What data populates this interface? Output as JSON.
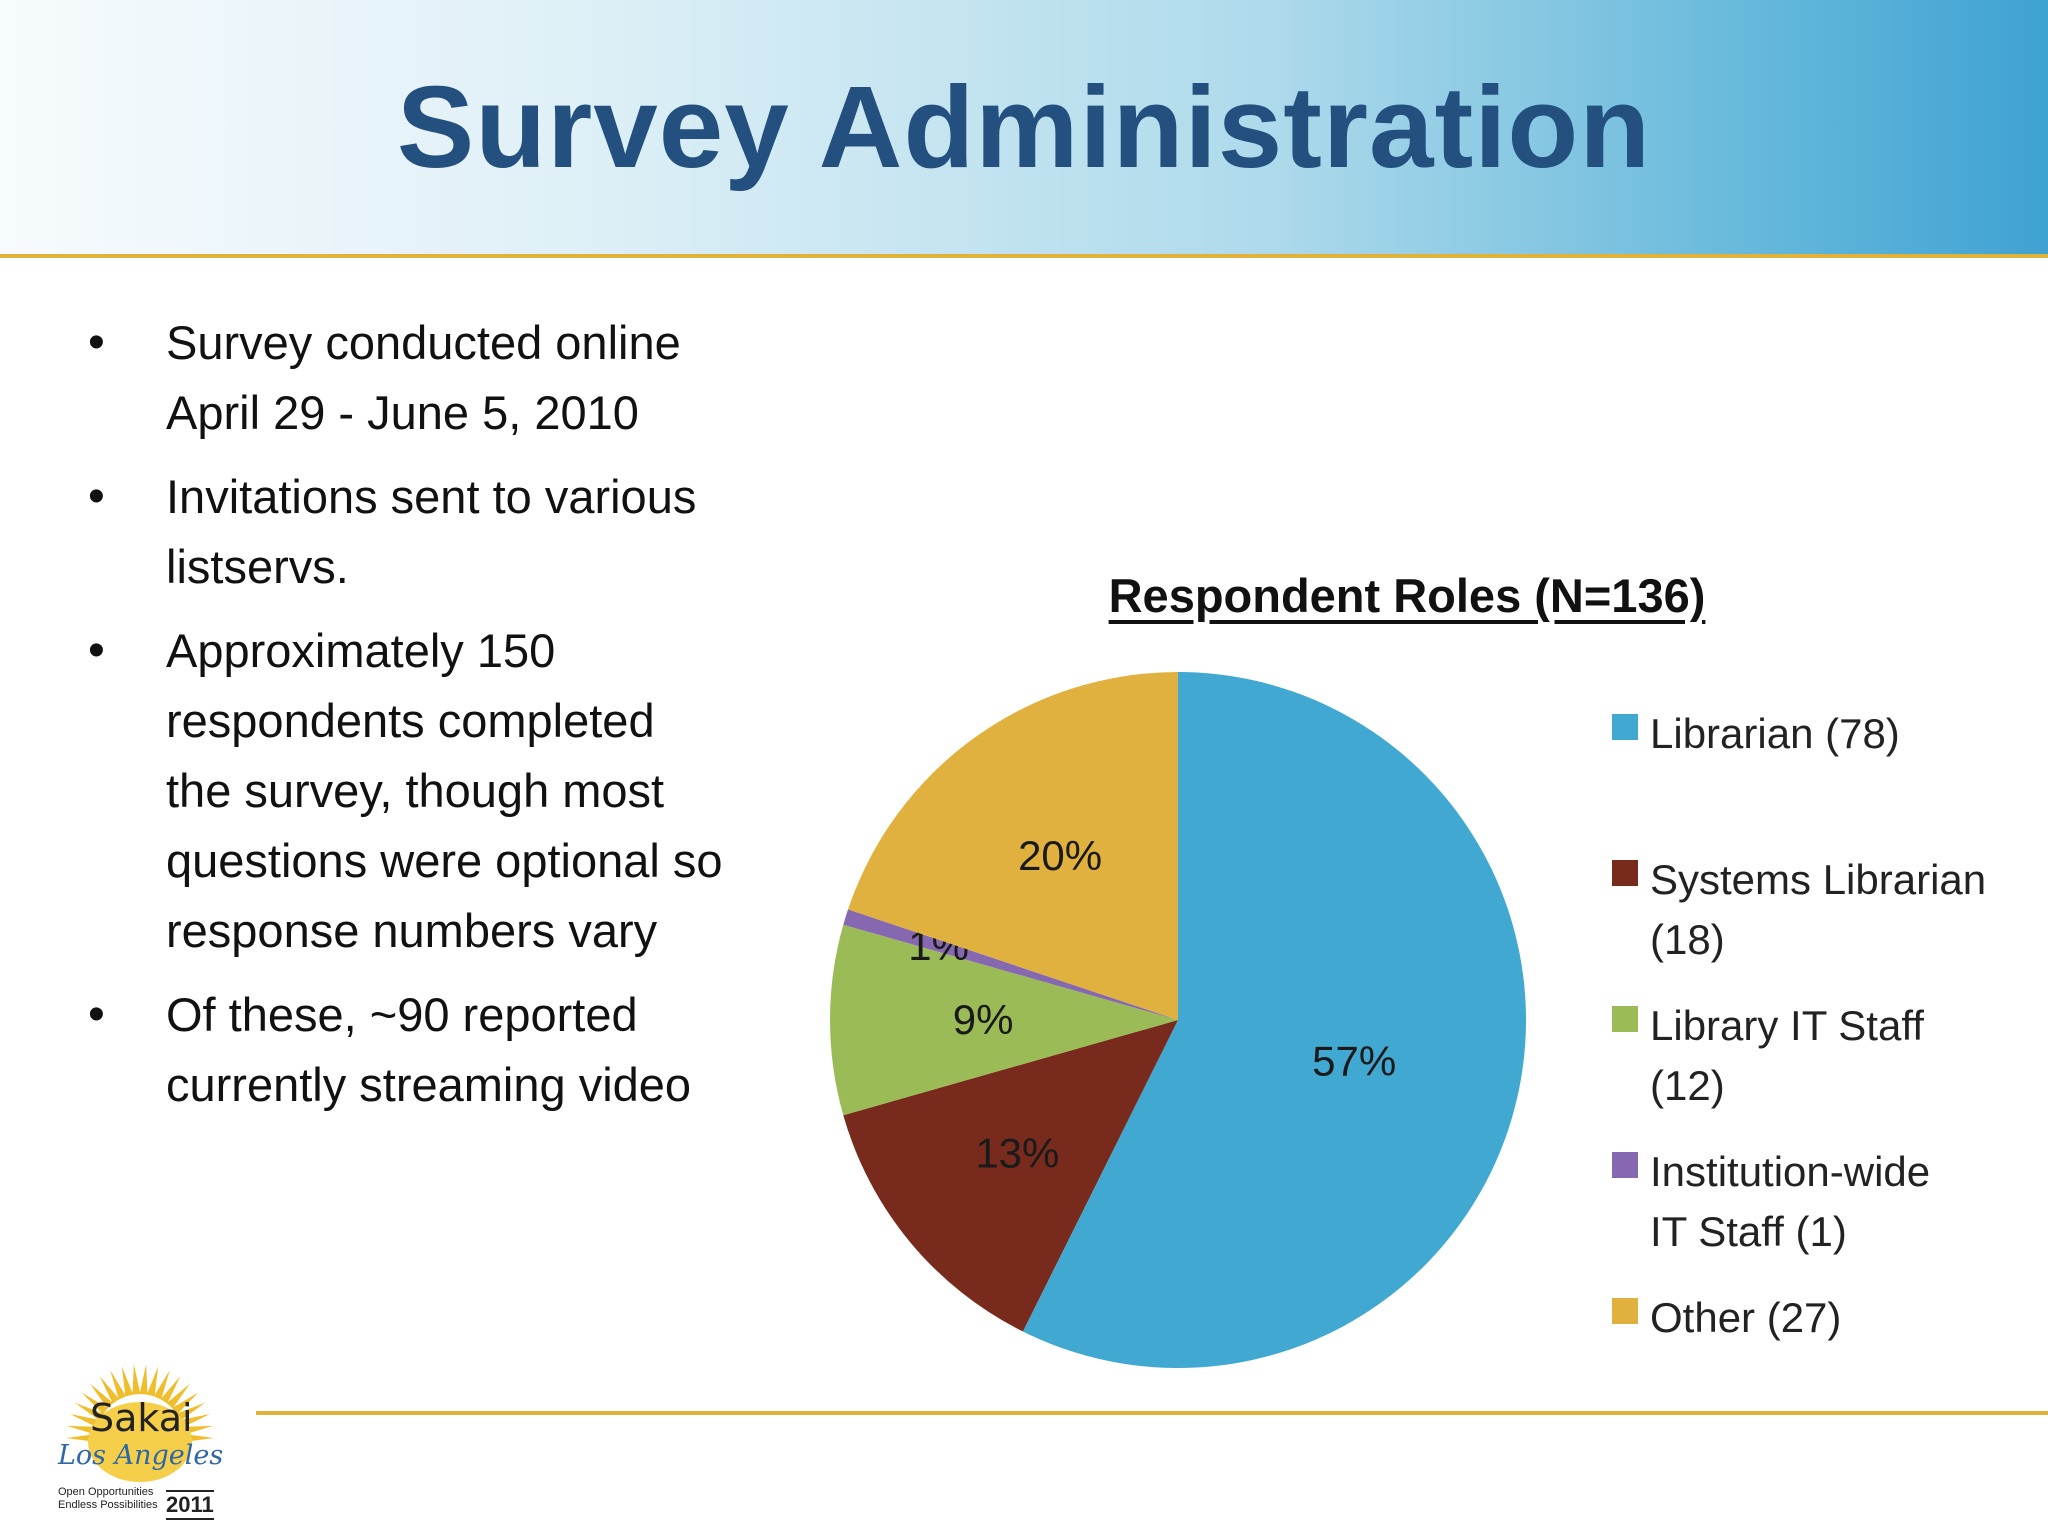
{
  "slide": {
    "title": "Survey Administration",
    "bullets": [
      [
        "Survey conducted online",
        "April 29 - June 5, 2010"
      ],
      [
        "Invitations sent to various",
        "listservs."
      ],
      [
        "Approximately 150",
        "respondents completed",
        "the survey, though most",
        "questions were optional so",
        "response numbers vary"
      ],
      [
        "Of these, ~90 reported",
        "currently streaming video"
      ]
    ]
  },
  "logo": {
    "word": "Sakai",
    "sub": "Los Angeles",
    "tagline": [
      "Open Opportunities",
      "Endless Possibilities"
    ],
    "year": "2011"
  },
  "chart_data": {
    "type": "pie",
    "title": "Respondent Roles (N=136)",
    "legend_position": "right",
    "slices": [
      {
        "label": [
          "Librarian (78)"
        ],
        "value": 78,
        "percent": "57%",
        "color": "#41a8d2"
      },
      {
        "label": [
          "Systems Librarian",
          "(18)"
        ],
        "value": 18,
        "percent": "13%",
        "color": "#782b1c"
      },
      {
        "label": [
          "Library IT Staff",
          "(12)"
        ],
        "value": 12,
        "percent": "9%",
        "color": "#9bbb57"
      },
      {
        "label": [
          "Institution-wide",
          "IT Staff (1)"
        ],
        "value": 1,
        "percent": "1%",
        "color": "#8668b1"
      },
      {
        "label": [
          "Other (27)"
        ],
        "value": 27,
        "percent": "20%",
        "color": "#e1b13f"
      }
    ]
  }
}
